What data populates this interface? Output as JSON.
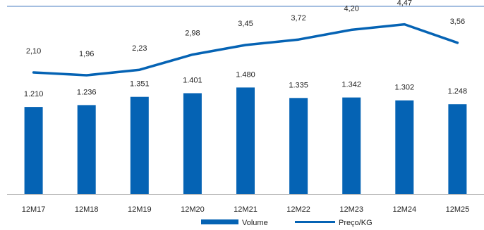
{
  "colors": {
    "bar": "#0563B4",
    "line": "#0563B4",
    "axis": "#BFBFBF",
    "top_rule": "#4A7CC0",
    "text": "#222222"
  },
  "legend": {
    "volume_label": "Volume",
    "price_label": "Preço/KG"
  },
  "chart_data": {
    "type": "bar",
    "categories": [
      "12M17",
      "12M18",
      "12M19",
      "12M20",
      "12M21",
      "12M22",
      "12M23",
      "12M24",
      "12M25"
    ],
    "series": [
      {
        "name": "Volume",
        "type": "bar",
        "values": [
          1210,
          1236,
          1351,
          1401,
          1480,
          1335,
          1342,
          1302,
          1248
        ],
        "labels": [
          "1.210",
          "1.236",
          "1.351",
          "1.401",
          "1.480",
          "1.335",
          "1.342",
          "1.302",
          "1.248"
        ]
      },
      {
        "name": "Preço/KG",
        "type": "line",
        "values": [
          2.1,
          1.96,
          2.23,
          2.98,
          3.45,
          3.72,
          4.2,
          4.47,
          3.56
        ],
        "labels": [
          "2,10",
          "1,96",
          "2,23",
          "2,98",
          "3,45",
          "3,72",
          "4,20",
          "4,47",
          "3,56"
        ]
      }
    ],
    "title": "",
    "xlabel": "",
    "ylabel": "",
    "legend_position": "bottom-right",
    "grid": false
  }
}
